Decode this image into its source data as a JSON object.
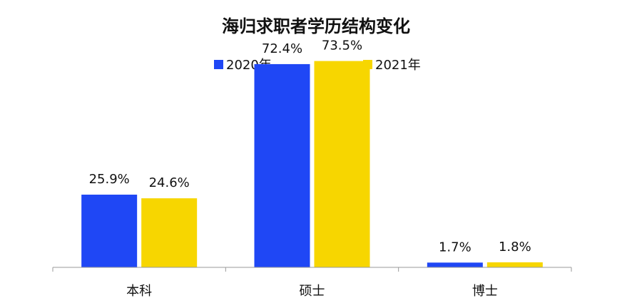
{
  "chart_data": {
    "type": "bar",
    "title": "海归求职者学历结构变化",
    "categories": [
      "本科",
      "硕士",
      "博士"
    ],
    "series": [
      {
        "name": "2020年",
        "color": "#1f47f5",
        "values": [
          25.9,
          72.4,
          1.7
        ],
        "labels": [
          "25.9%",
          "72.4%",
          "1.7%"
        ]
      },
      {
        "name": "2021年",
        "color": "#f7d600",
        "values": [
          24.6,
          73.5,
          1.8
        ],
        "labels": [
          "24.6%",
          "73.5%",
          "1.8%"
        ]
      }
    ],
    "unit": "%",
    "ylim": [
      0,
      80
    ],
    "grid": false,
    "legend_position": "top-center",
    "xlabel": "",
    "ylabel": ""
  }
}
